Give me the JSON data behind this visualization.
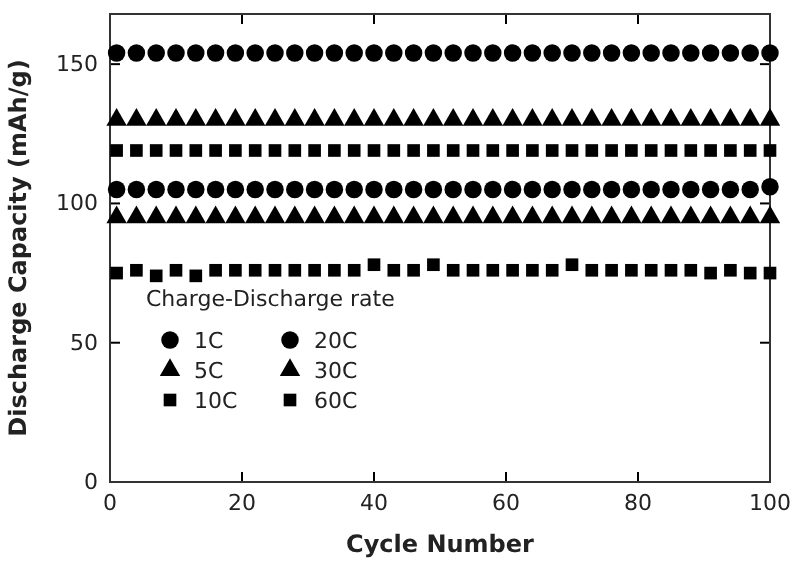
{
  "chart_data": {
    "type": "scatter",
    "xlabel": "Cycle Number",
    "ylabel": "Discharge Capacity (mAh/g)",
    "legend_title": "Charge-Discharge rate",
    "legend": "bottom left",
    "x": [
      1,
      4,
      7,
      10,
      13,
      16,
      19,
      22,
      25,
      28,
      31,
      34,
      37,
      40,
      43,
      46,
      49,
      52,
      55,
      58,
      61,
      64,
      67,
      70,
      73,
      76,
      79,
      82,
      85,
      88,
      91,
      94,
      97,
      100
    ],
    "xlim": [
      0,
      100
    ],
    "xticks": [
      0,
      20,
      40,
      60,
      80,
      100
    ],
    "ylim": [
      0,
      168
    ],
    "yticks": [
      0,
      50,
      100,
      150
    ],
    "series": [
      {
        "name": "1C",
        "color": "#000000",
        "marker": "circle",
        "values": [
          154,
          154,
          154,
          154,
          154,
          154,
          154,
          154,
          154,
          154,
          154,
          154,
          154,
          154,
          154,
          154,
          154,
          154,
          154,
          154,
          154,
          154,
          154,
          154,
          154,
          154,
          154,
          154,
          154,
          154,
          154,
          154,
          154,
          154
        ]
      },
      {
        "name": "5C",
        "color": "#000000",
        "marker": "triangle",
        "values": [
          130,
          130,
          130,
          130,
          130,
          130,
          130,
          130,
          130,
          130,
          130,
          130,
          130,
          130,
          130,
          130,
          130,
          130,
          130,
          130,
          130,
          130,
          130,
          130,
          130,
          130,
          130,
          130,
          130,
          130,
          130,
          130,
          130,
          130
        ]
      },
      {
        "name": "10C",
        "color": "#000000",
        "marker": "square",
        "values": [
          119,
          119,
          119,
          119,
          119,
          119,
          119,
          119,
          119,
          119,
          119,
          119,
          119,
          119,
          119,
          119,
          119,
          119,
          119,
          119,
          119,
          119,
          119,
          119,
          119,
          119,
          119,
          119,
          119,
          119,
          119,
          119,
          119,
          119
        ]
      },
      {
        "name": "20C",
        "color": "#000000",
        "marker": "circle",
        "values": [
          105,
          105,
          105,
          105,
          105,
          105,
          105,
          105,
          105,
          105,
          105,
          105,
          105,
          105,
          105,
          105,
          105,
          105,
          105,
          105,
          105,
          105,
          105,
          105,
          105,
          105,
          105,
          105,
          105,
          105,
          105,
          105,
          105,
          106
        ]
      },
      {
        "name": "30C",
        "color": "#000000",
        "marker": "triangle",
        "values": [
          95,
          95,
          95,
          95,
          95,
          95,
          95,
          95,
          95,
          95,
          95,
          95,
          95,
          95,
          95,
          95,
          95,
          95,
          95,
          95,
          95,
          95,
          95,
          95,
          95,
          95,
          95,
          95,
          95,
          95,
          95,
          95,
          95,
          95
        ]
      },
      {
        "name": "60C",
        "color": "#000000",
        "marker": "square",
        "values": [
          75,
          76,
          74,
          76,
          74,
          76,
          76,
          76,
          76,
          76,
          76,
          76,
          76,
          78,
          76,
          76,
          78,
          76,
          76,
          76,
          76,
          76,
          76,
          78,
          76,
          76,
          76,
          76,
          76,
          76,
          75,
          76,
          75,
          75
        ]
      }
    ]
  }
}
